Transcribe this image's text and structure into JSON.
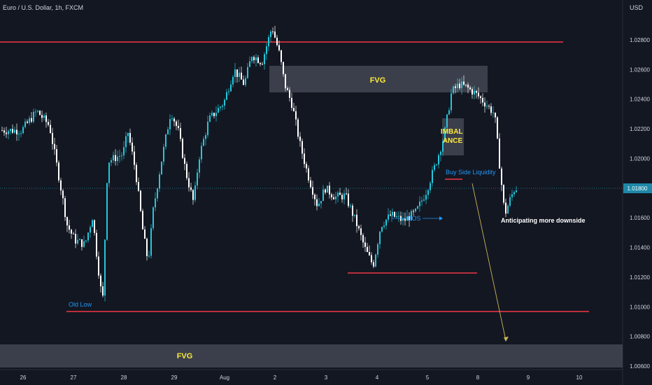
{
  "header": {
    "symbol_title": "Euro / U.S. Dollar, 1h, FXCM",
    "currency": "USD"
  },
  "colors": {
    "background": "#131722",
    "bull": "#26c6da",
    "bear": "#ffffff",
    "level_line": "#f23645",
    "zone": "#4a4e5a",
    "zone_text": "#ffeb3b",
    "label_text": "#2196f3",
    "axis_text": "#d1d4dc",
    "projection_arrow": "#c9b458"
  },
  "chart_data": {
    "type": "candlestick",
    "x_axis_labels": [
      "26",
      "27",
      "28",
      "29",
      "Aug",
      "2",
      "3",
      "4",
      "5",
      "8",
      "9",
      "10"
    ],
    "y_axis_labels": [
      "1.02800",
      "1.02600",
      "1.02400",
      "1.02200",
      "1.02000",
      "1.01800",
      "1.01600",
      "1.01400",
      "1.01200",
      "1.01000",
      "1.00800",
      "1.00600"
    ],
    "ylim": [
      1.0057,
      1.0312
    ],
    "current_price_label": "1.01800",
    "path_points": [
      [
        "26",
        1.0219
      ],
      [
        "26.3",
        1.0232
      ],
      [
        "26.55",
        1.0222
      ],
      [
        "26.75",
        1.0185
      ],
      [
        "26.9",
        1.0155
      ],
      [
        "27.05",
        1.0145
      ],
      [
        "27.25",
        1.0142
      ],
      [
        "27.4",
        1.0161
      ],
      [
        "27.5",
        1.013
      ],
      [
        "27.6",
        1.0102
      ],
      [
        "27.7",
        1.0198
      ],
      [
        "28",
        1.0203
      ],
      [
        "28.1",
        1.0218
      ],
      [
        "28.25",
        1.0192
      ],
      [
        "28.4",
        1.015
      ],
      [
        "28.5",
        1.013
      ],
      [
        "28.6",
        1.0165
      ],
      [
        "28.75",
        1.0196
      ],
      [
        "28.95",
        1.0232
      ],
      [
        "29.1",
        1.0218
      ],
      [
        "29.25",
        1.019
      ],
      [
        "29.4",
        1.017
      ],
      [
        "29.5",
        1.02
      ],
      [
        "29.7",
        1.0226
      ],
      [
        "30",
        1.0238
      ],
      [
        "30.2",
        1.026
      ],
      [
        "30.4",
        1.025
      ],
      [
        "30.55",
        1.027
      ],
      [
        "30.75",
        1.0265
      ],
      [
        "30.95",
        1.0289
      ],
      [
        "31.1",
        1.027
      ],
      [
        "31.2",
        1.025
      ],
      [
        "31.35",
        1.0236
      ],
      [
        "31.5",
        1.021
      ],
      [
        "31.65",
        1.019
      ],
      [
        "31.85",
        1.0168
      ],
      [
        "32.0",
        1.018
      ],
      [
        "32.2",
        1.0174
      ],
      [
        "32.4",
        1.0175
      ],
      [
        "32.6",
        1.0158
      ],
      [
        "32.8",
        1.0138
      ],
      [
        "32.95",
        1.0128
      ],
      [
        "33.1",
        1.0155
      ],
      [
        "33.3",
        1.0162
      ],
      [
        "33.55",
        1.0158
      ],
      [
        "33.8",
        1.0164
      ],
      [
        "34.0",
        1.0178
      ],
      [
        "34.2",
        1.0198
      ],
      [
        "34.35",
        1.0215
      ],
      [
        "34.5",
        1.0245
      ],
      [
        "34.65",
        1.025
      ],
      [
        "34.8",
        1.0248
      ],
      [
        "35.0",
        1.0243
      ],
      [
        "35.2",
        1.0236
      ],
      [
        "35.35",
        1.023
      ],
      [
        "35.45",
        1.0195
      ],
      [
        "35.55",
        1.0162
      ],
      [
        "35.65",
        1.0172
      ],
      [
        "35.75",
        1.018
      ]
    ]
  },
  "annotations": {
    "zone_top": "FVG",
    "zone_bottom": "FVG",
    "imbalance": "IMBAL ANCE",
    "buy_side": "Buy Side Liquidity",
    "bos": "BOS",
    "old_low": "Old Low",
    "outlook": "Anticipating more downside"
  }
}
